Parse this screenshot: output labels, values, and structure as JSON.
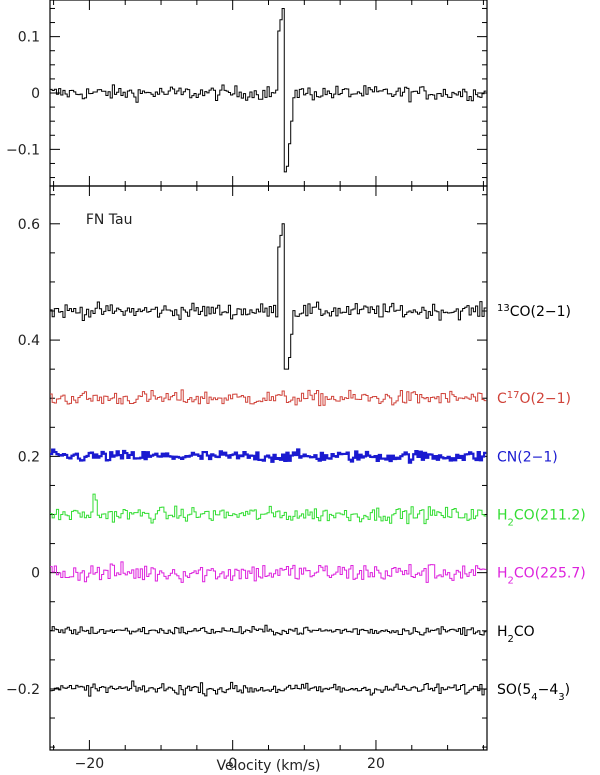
{
  "chart_data": [
    {
      "type": "line",
      "panel": "top",
      "xlim": [
        -25.5,
        35.5
      ],
      "ylim": [
        -0.165,
        0.165
      ],
      "yticks": [
        -0.1,
        0,
        0.1
      ],
      "ytick_labels": [
        "−0.1",
        "0",
        "0.1"
      ],
      "series": [
        {
          "color": "#000000",
          "baseline": 0,
          "noise": 0.012,
          "features": [
            {
              "x": 6.2,
              "dy": 0.11
            },
            {
              "x": 6.5,
              "dy": 0.13
            },
            {
              "x": 6.8,
              "dy": 0.15
            },
            {
              "x": 7.1,
              "dy": -0.14
            },
            {
              "x": 7.4,
              "dy": -0.13
            },
            {
              "x": 7.7,
              "dy": -0.09
            },
            {
              "x": 8.0,
              "dy": -0.05
            }
          ]
        }
      ]
    },
    {
      "type": "line",
      "panel": "bottom",
      "annotation": "FN Tau",
      "xlabel": "Velocity (km/s)",
      "xlim": [
        -25.5,
        35.5
      ],
      "ylim": [
        -0.305,
        0.665
      ],
      "xticks": [
        -20,
        0,
        20
      ],
      "xtick_labels": [
        "−20",
        "0",
        "20"
      ],
      "yticks": [
        -0.2,
        0,
        0.2,
        0.4,
        0.6
      ],
      "ytick_labels": [
        "−0.2",
        "0",
        "0.2",
        "0.4",
        "0.6"
      ],
      "series": [
        {
          "label": "¹³CO(2−1)",
          "label_parts": [
            {
              "t": "13",
              "sup": true
            },
            {
              "t": "CO(2−1)"
            }
          ],
          "color": "#000000",
          "baseline": 0.45,
          "noise": 0.012,
          "features": [
            {
              "x": 6.2,
              "dy": 0.11
            },
            {
              "x": 6.5,
              "dy": 0.13
            },
            {
              "x": 6.8,
              "dy": 0.15
            },
            {
              "x": 7.1,
              "dy": -0.1
            },
            {
              "x": 7.4,
              "dy": -0.1
            },
            {
              "x": 7.7,
              "dy": -0.08
            },
            {
              "x": 8.0,
              "dy": -0.04
            }
          ]
        },
        {
          "label": "C¹⁷O(2−1)",
          "label_parts": [
            {
              "t": "C"
            },
            {
              "t": "17",
              "sup": true
            },
            {
              "t": "O(2−1)"
            }
          ],
          "color": "#d0433a",
          "baseline": 0.3,
          "noise": 0.012,
          "features": []
        },
        {
          "label": "CN(2−1)",
          "label_parts": [
            {
              "t": "CN(2−1)"
            }
          ],
          "color": "#1a1ad0",
          "baseline": 0.2,
          "noise": 0.009,
          "features": []
        },
        {
          "label": "H₂CO(211.2)",
          "label_parts": [
            {
              "t": "H"
            },
            {
              "t": "2",
              "sub": true
            },
            {
              "t": "CO(211.2)"
            }
          ],
          "color": "#33dd33",
          "baseline": 0.1,
          "noise": 0.012,
          "features": [
            {
              "x": -19.6,
              "dy": 0.035
            },
            {
              "x": -19.3,
              "dy": 0.025
            }
          ]
        },
        {
          "label": "H₂CO(225.7)",
          "label_parts": [
            {
              "t": "H"
            },
            {
              "t": "2",
              "sub": true
            },
            {
              "t": "CO(225.7)"
            }
          ],
          "color": "#dd22dd",
          "baseline": 0.0,
          "noise": 0.016,
          "features": []
        },
        {
          "label": "H₂CO",
          "label_parts": [
            {
              "t": "H"
            },
            {
              "t": "2",
              "sub": true
            },
            {
              "t": "CO"
            }
          ],
          "color": "#000000",
          "baseline": -0.1,
          "noise": 0.007,
          "features": []
        },
        {
          "label": "SO(5₄−4₃)",
          "label_parts": [
            {
              "t": "SO(5"
            },
            {
              "t": "4",
              "sub": true
            },
            {
              "t": "−4"
            },
            {
              "t": "3",
              "sub": true
            },
            {
              "t": ")"
            }
          ],
          "color": "#000000",
          "baseline": -0.2,
          "noise": 0.009,
          "features": []
        }
      ]
    }
  ]
}
